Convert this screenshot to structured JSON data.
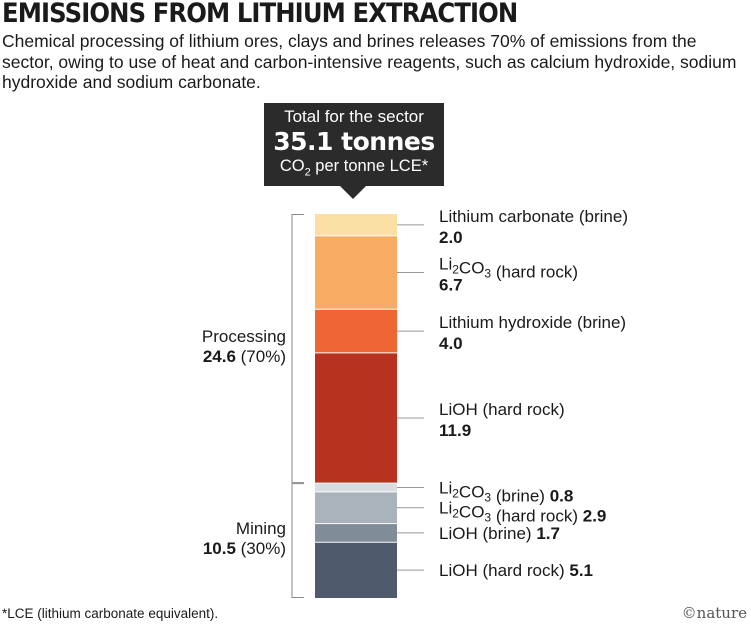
{
  "title": "EMISSIONS FROM LITHIUM EXTRACTION",
  "subtitle": "Chemical processing of lithium ores, clays and brines releases 70% of emissions from the sector, owing to use of heat and carbon-intensive reagents, such as calcium hydroxide, sodium hydroxide and sodium carbonate.",
  "callout": {
    "line1": "Total for the sector",
    "value": "35.1 tonnes",
    "unit_co": "CO",
    "unit_sub": "2",
    "unit_rest": " per tonne LCE*"
  },
  "groups": {
    "processing": {
      "name": "Processing",
      "total": "24.6",
      "pct": " (70%)"
    },
    "mining": {
      "name": "Mining",
      "total": "10.5",
      "pct": " (30%)"
    }
  },
  "footnote": "*LCE (lithium carbonate equivalent).",
  "credit": "©nature",
  "chart_data": {
    "type": "stacked bar",
    "unit": "tonnes CO2 per tonne LCE",
    "total": 35.1,
    "segments": [
      {
        "label": "Lithium carbonate (brine)",
        "value": 2.0,
        "display": "2.0",
        "group": "Processing",
        "color": "#fbe0a6",
        "layout": "stacked"
      },
      {
        "label": "Li2CO3 (hard rock)",
        "value": 6.7,
        "display": "6.7",
        "group": "Processing",
        "color": "#f8ab62",
        "layout": "stacked"
      },
      {
        "label": "Lithium hydroxide (brine)",
        "value": 4.0,
        "display": "4.0",
        "group": "Processing",
        "color": "#ee6633",
        "layout": "stacked"
      },
      {
        "label": "LiOH (hard rock)",
        "value": 11.9,
        "display": "11.9",
        "group": "Processing",
        "color": "#b8331f",
        "layout": "stacked"
      },
      {
        "label": "Li2CO3 (brine)",
        "value": 0.8,
        "display": "0.8",
        "group": "Mining",
        "color": "#d9dde2",
        "layout": "inline"
      },
      {
        "label": "Li2CO3 (hard rock)",
        "value": 2.9,
        "display": "2.9",
        "group": "Mining",
        "color": "#aab3bc",
        "layout": "inline"
      },
      {
        "label": "LiOH (brine)",
        "value": 1.7,
        "display": "1.7",
        "group": "Mining",
        "color": "#818c99",
        "layout": "inline"
      },
      {
        "label": "LiOH (hard rock)",
        "value": 5.1,
        "display": "5.1",
        "group": "Mining",
        "color": "#4f5a6c",
        "layout": "inline"
      }
    ]
  }
}
